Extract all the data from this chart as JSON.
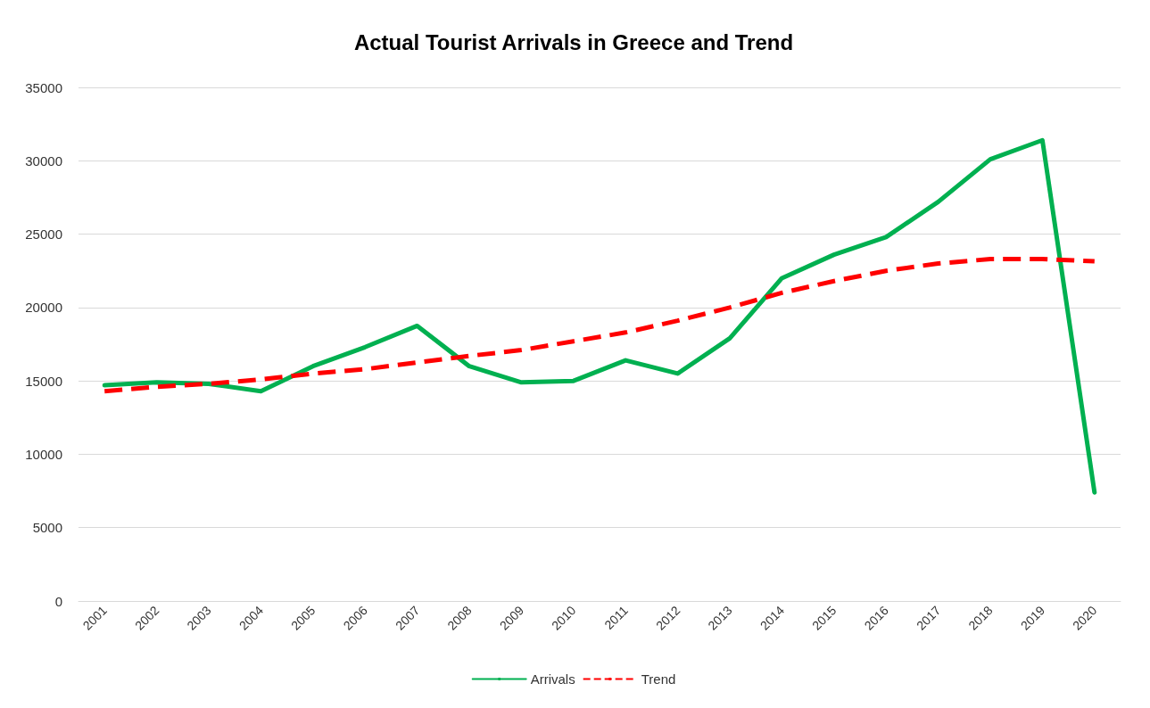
{
  "chart_data": {
    "type": "line",
    "title": "Actual Tourist Arrivals in Greece and Trend",
    "categories": [
      "2001",
      "2002",
      "2003",
      "2004",
      "2005",
      "2006",
      "2007",
      "2008",
      "2009",
      "2010",
      "2011",
      "2012",
      "2013",
      "2014",
      "2015",
      "2016",
      "2017",
      "2018",
      "2019",
      "2020"
    ],
    "series": [
      {
        "name": "Arrivals",
        "color": "#00b050",
        "line_style": "solid",
        "values": [
          14700,
          14900,
          14800,
          14300,
          16000,
          17300,
          18750,
          16000,
          14900,
          15000,
          16400,
          15500,
          17900,
          22000,
          23600,
          24800,
          27200,
          30100,
          31400,
          7400
        ]
      },
      {
        "name": "Trend",
        "color": "#ff0000",
        "line_style": "dashed",
        "values": [
          14300,
          14600,
          14800,
          15100,
          15500,
          15800,
          16250,
          16700,
          17100,
          17700,
          18300,
          19100,
          20000,
          21000,
          21800,
          22500,
          23000,
          23300,
          23300,
          23150
        ]
      }
    ],
    "ylim": [
      0,
      35000
    ],
    "yticks": [
      0,
      5000,
      10000,
      15000,
      20000,
      25000,
      30000,
      35000
    ],
    "grid": "y",
    "legend": "bottom",
    "marker": "none"
  }
}
